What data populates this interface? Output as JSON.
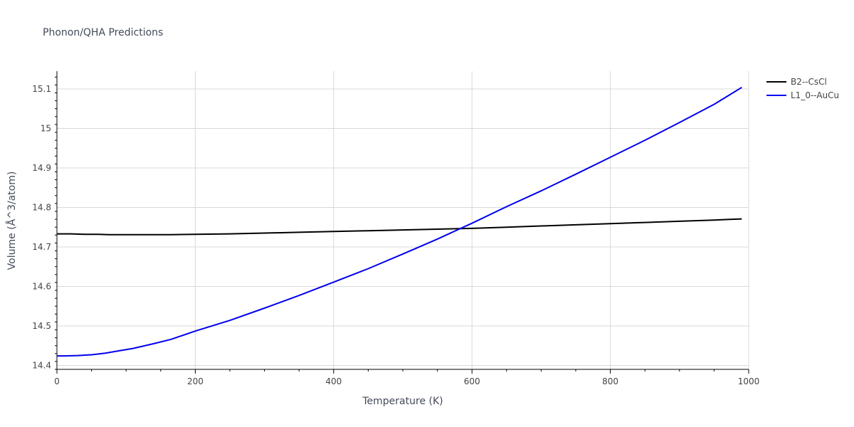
{
  "chart_data": {
    "type": "line",
    "title": "Phonon/QHA Predictions",
    "xlabel": "Temperature (K)",
    "ylabel": "Volume (Å^3/atom)",
    "xlim": [
      0,
      1000
    ],
    "ylim": [
      14.39,
      15.145
    ],
    "x_ticks": [
      0,
      200,
      400,
      600,
      800,
      1000
    ],
    "y_ticks": [
      14.4,
      14.5,
      14.6,
      14.7,
      14.8,
      14.9,
      15,
      15.1
    ],
    "x_tick_labels": [
      "0",
      "200",
      "400",
      "600",
      "800",
      "1000"
    ],
    "y_tick_labels": [
      "14.4",
      "14.5",
      "14.6",
      "14.7",
      "14.8",
      "14.9",
      "15",
      "15.1"
    ],
    "grid": true,
    "legend_position": "top-right",
    "series": [
      {
        "name": "B2--CsCl",
        "color": "#000000",
        "x": [
          0,
          20,
          40,
          60,
          75,
          100,
          130,
          165,
          200,
          250,
          300,
          325,
          350,
          400,
          450,
          500,
          550,
          600,
          650,
          700,
          750,
          800,
          850,
          900,
          950,
          990
        ],
        "y": [
          14.733,
          14.733,
          14.732,
          14.732,
          14.731,
          14.731,
          14.731,
          14.731,
          14.732,
          14.733,
          14.735,
          14.736,
          14.737,
          14.739,
          14.741,
          14.743,
          14.745,
          14.747,
          14.75,
          14.753,
          14.756,
          14.759,
          14.762,
          14.765,
          14.768,
          14.771
        ]
      },
      {
        "name": "L1_0--AuCu",
        "color": "#0000ee",
        "x": [
          0,
          10,
          30,
          50,
          70,
          90,
          110,
          140,
          165,
          200,
          250,
          300,
          350,
          400,
          450,
          500,
          550,
          600,
          650,
          700,
          750,
          800,
          850,
          900,
          950,
          990
        ],
        "y": [
          14.424,
          14.424,
          14.425,
          14.427,
          14.431,
          14.437,
          14.443,
          14.455,
          14.466,
          14.487,
          14.514,
          14.545,
          14.577,
          14.611,
          14.645,
          14.682,
          14.72,
          14.76,
          14.802,
          14.842,
          14.884,
          14.927,
          14.97,
          15.015,
          15.061,
          15.104
        ]
      }
    ]
  }
}
